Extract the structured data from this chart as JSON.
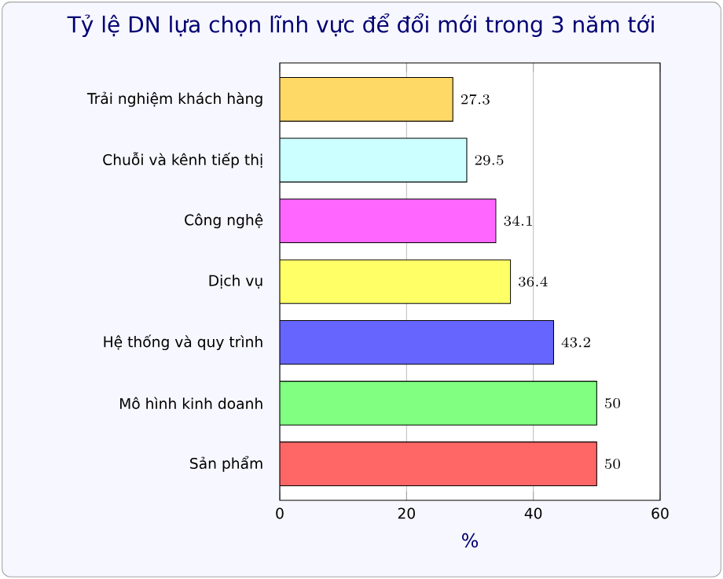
{
  "chart_data": {
    "type": "bar",
    "orientation": "horizontal",
    "title": "Tỷ lệ DN lựa chọn lĩnh vực để đổi mới trong 3 năm tới",
    "xlabel": "%",
    "categories": [
      "Trải nghiệm khách hàng",
      "Chuỗi và kênh tiếp thị",
      "Công nghệ",
      "Dịch vụ",
      "Hệ thống và quy trình",
      "Mô hình kinh doanh",
      "Sản phẩm"
    ],
    "values": [
      27.3,
      29.5,
      34.1,
      36.4,
      43.2,
      50,
      50
    ],
    "colors": [
      "#ffd966",
      "#ccffff",
      "#ff66ff",
      "#ffff66",
      "#6666ff",
      "#80ff80",
      "#ff6666"
    ],
    "xlim": [
      0,
      60
    ],
    "xticks": [
      0,
      20,
      40,
      60
    ],
    "grid": "x",
    "data_labels": true
  }
}
